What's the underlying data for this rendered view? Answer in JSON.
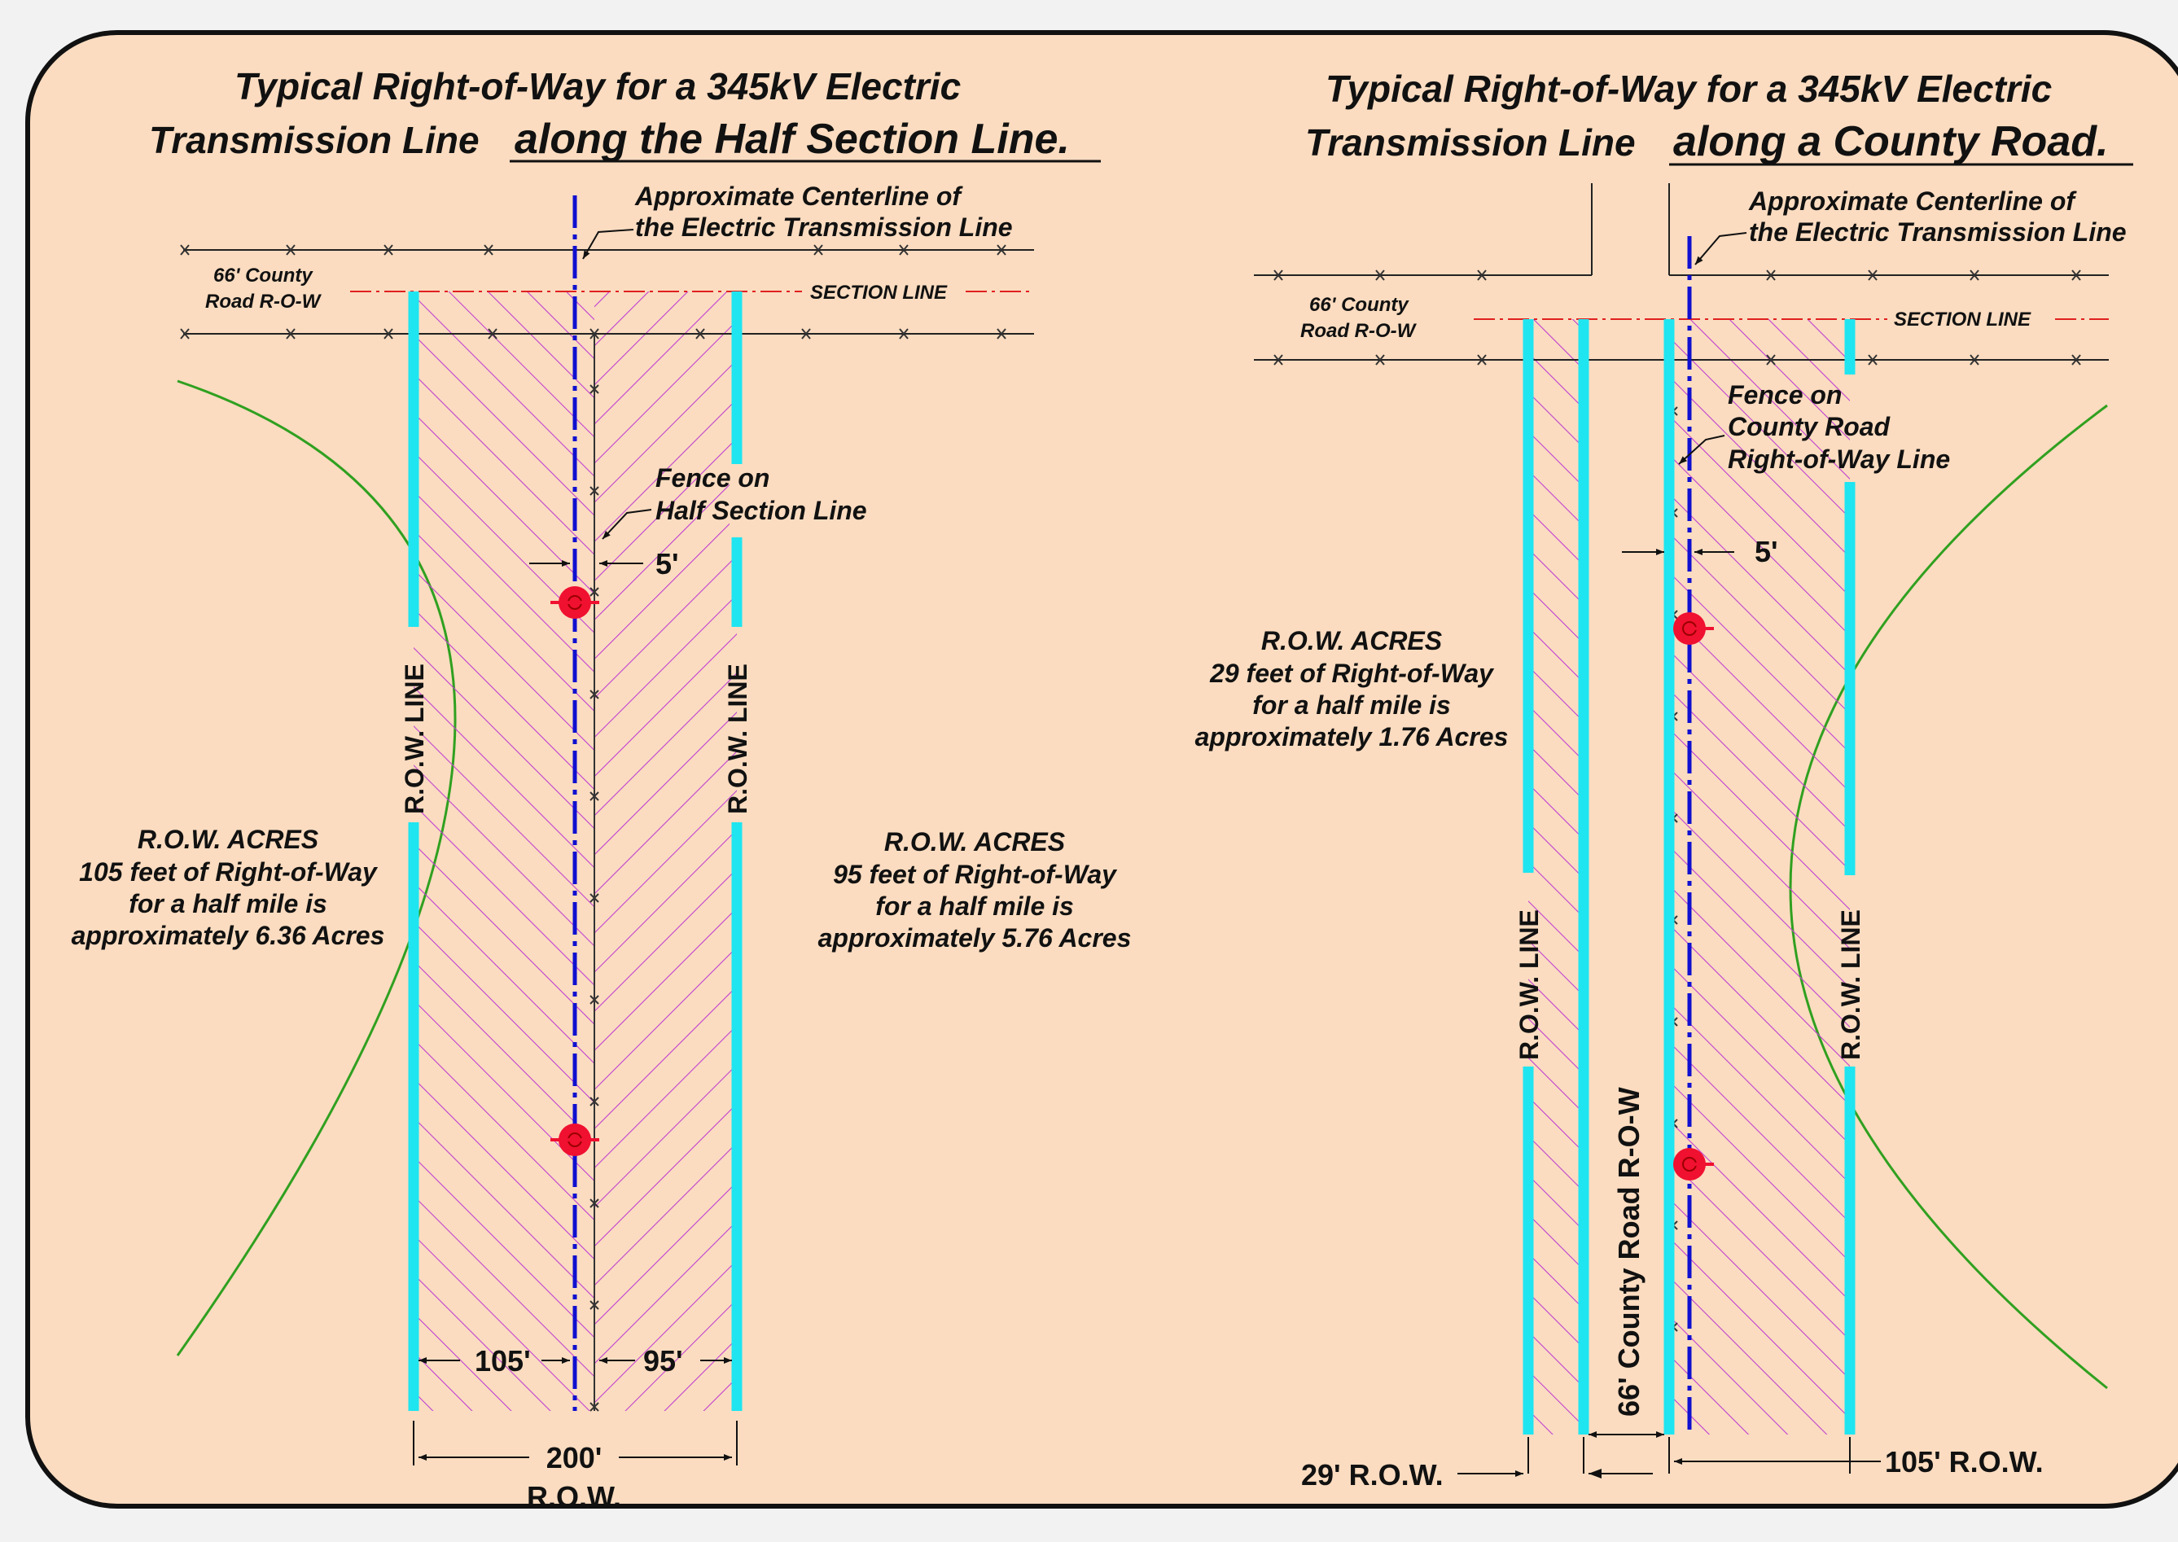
{
  "left": {
    "title_line1": "Typical Right-of-Way for a 345kV Electric",
    "title_line2_a": "Transmission Line",
    "title_line2_b": "along the Half Section Line.",
    "centerline_label_1": "Approximate Centerline of",
    "centerline_label_2": "the Electric Transmission Line",
    "county_row_1": "66' County",
    "county_row_2": "Road R-O-W",
    "section_line": "SECTION LINE",
    "fence_1": "Fence on",
    "fence_2": "Half Section Line",
    "offset": "5'",
    "row_line_left": "R.O.W. LINE",
    "row_line_right": "R.O.W. LINE",
    "acres_left_1": "R.O.W. ACRES",
    "acres_left_2": "105 feet of Right-of-Way",
    "acres_left_3": "for a half mile is",
    "acres_left_4": "approximately 6.36 Acres",
    "acres_right_1": "R.O.W. ACRES",
    "acres_right_2": "95 feet of Right-of-Way",
    "acres_right_3": "for a half mile is",
    "acres_right_4": "approximately 5.76 Acres",
    "dim_left": "105'",
    "dim_right": "95'",
    "dim_total": "200'",
    "dim_total_sub": "R.O.W."
  },
  "right": {
    "title_line1": "Typical Right-of-Way for a 345kV Electric",
    "title_line2_a": "Transmission Line",
    "title_line2_b": "along a County Road.",
    "centerline_label_1": "Approximate Centerline of",
    "centerline_label_2": "the Electric Transmission Line",
    "county_row_1": "66' County",
    "county_row_2": "Road R-O-W",
    "section_line": "SECTION LINE",
    "fence_1": "Fence on",
    "fence_2": "County Road",
    "fence_3": "Right-of-Way Line",
    "offset": "5'",
    "acres_1": "R.O.W. ACRES",
    "acres_2": "29 feet of Right-of-Way",
    "acres_3": "for a half mile is",
    "acres_4": "approximately 1.76 Acres",
    "row_line_left": "R.O.W. LINE",
    "row_line_right": "R.O.W. LINE",
    "county_road_row": "66' County Road R-O-W",
    "dim_left": "29' R.O.W.",
    "dim_right": "105' R.O.W."
  },
  "colors": {
    "background": "#fbdcc0",
    "row_line": "#1fe5f0",
    "hatch": "#c040d0",
    "centerline": "#1010d0",
    "arc": "#30a020",
    "section_line": "#e02020",
    "pole": "#f01030"
  }
}
